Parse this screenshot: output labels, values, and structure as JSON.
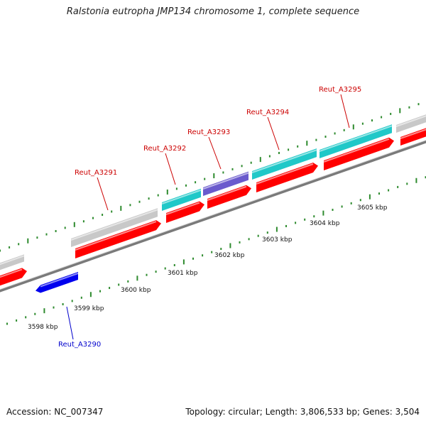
{
  "title": "Ralstonia eutropha JMP134 chromosome 1, complete sequence",
  "footer": {
    "accession": "Accession: NC_007347",
    "summary": "Topology: circular; Length: 3,806,533 bp; Genes: 3,504"
  },
  "ticks": [
    "3598 kbp",
    "3599 kbp",
    "3600 kbp",
    "3601 kbp",
    "3602 kbp",
    "3603 kbp",
    "3604 kbp",
    "3605 kbp"
  ],
  "colors": {
    "cds": "#ff0000",
    "gene_plus": "#c8c8c8",
    "gene_cyan": "#20c8c8",
    "gene_violet": "#6a5acd",
    "gene_minus": "#0000ee",
    "tick": "#2e8b2e",
    "backbone": "#888888",
    "label_plus": "#cc0000",
    "label_minus": "#0000cc"
  },
  "genes": [
    {
      "name": "Reut_A3290",
      "strand": "-"
    },
    {
      "name": "Reut_A3291",
      "strand": "+"
    },
    {
      "name": "Reut_A3292",
      "strand": "+"
    },
    {
      "name": "Reut_A3293",
      "strand": "+"
    },
    {
      "name": "Reut_A3294",
      "strand": "+"
    },
    {
      "name": "Reut_A3295",
      "strand": "+"
    }
  ]
}
